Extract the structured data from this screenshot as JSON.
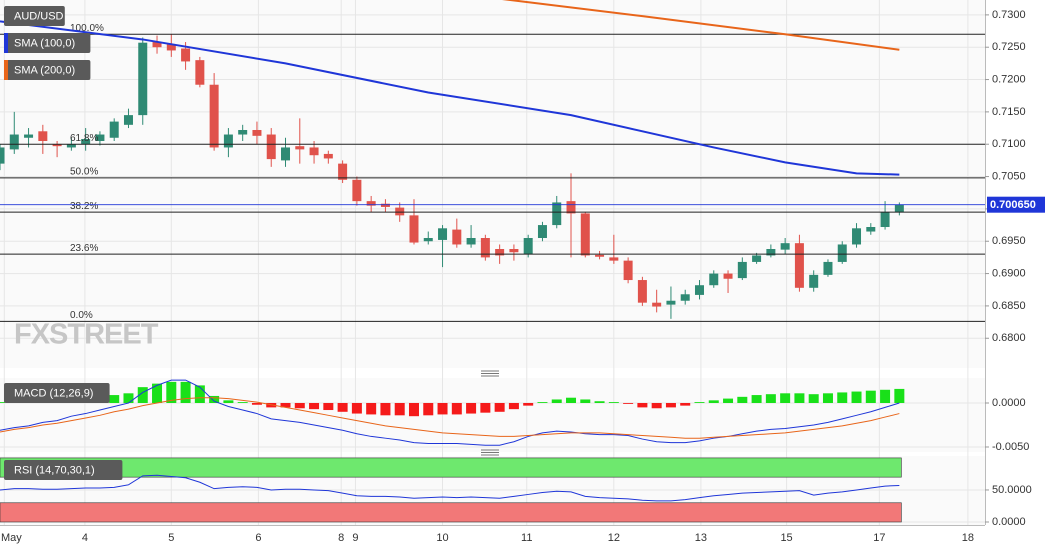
{
  "chart_data": [
    {
      "type": "candlestick",
      "title": "AUD/USD",
      "watermark": "FXSTREET",
      "up_color": "#2f8a74",
      "down_color": "#e0524b",
      "xlim": [
        0,
        69
      ],
      "xticks": [
        {
          "value": 0.3,
          "label": "May"
        },
        {
          "value": 5.95,
          "label": "4"
        },
        {
          "value": 12.0,
          "label": "5"
        },
        {
          "value": 18.1,
          "label": "6"
        },
        {
          "value": 23.9,
          "label": "8"
        },
        {
          "value": 24.9,
          "label": "9"
        },
        {
          "value": 31.0,
          "label": "10"
        },
        {
          "value": 36.9,
          "label": "11"
        },
        {
          "value": 43.0,
          "label": "12"
        },
        {
          "value": 49.1,
          "label": "13"
        },
        {
          "value": 55.1,
          "label": "15"
        },
        {
          "value": 61.6,
          "label": "17"
        },
        {
          "value": 67.8,
          "label": "18"
        }
      ],
      "ylim": [
        0.6754,
        0.7323
      ],
      "yticks": [
        {
          "value": 0.73,
          "label": "0.7300"
        },
        {
          "value": 0.725,
          "label": "0.7250"
        },
        {
          "value": 0.72,
          "label": "0.7200"
        },
        {
          "value": 0.715,
          "label": "0.7150"
        },
        {
          "value": 0.71,
          "label": "0.7100"
        },
        {
          "value": 0.705,
          "label": "0.7050"
        },
        {
          "value": 0.7,
          "label": "0.7000"
        },
        {
          "value": 0.695,
          "label": "0.6950"
        },
        {
          "value": 0.69,
          "label": "0.6900"
        },
        {
          "value": 0.685,
          "label": "0.6850"
        },
        {
          "value": 0.68,
          "label": "0.6800"
        }
      ],
      "grid": true,
      "x": [
        0,
        1,
        2,
        3,
        4,
        5,
        6,
        7,
        8,
        9,
        10,
        11,
        12,
        13,
        14,
        15,
        16,
        17,
        18,
        19,
        20,
        21,
        22,
        23,
        24,
        25,
        26,
        27,
        28,
        29,
        30,
        31,
        32,
        33,
        34,
        35,
        36,
        37,
        38,
        39,
        40,
        41,
        42,
        43,
        44,
        45,
        46,
        47,
        48,
        49,
        50,
        51,
        52,
        53,
        54,
        55,
        56,
        57,
        58,
        59,
        60,
        61,
        62,
        63
      ],
      "open": [
        0.707,
        0.7092,
        0.711,
        0.712,
        0.71,
        0.7095,
        0.71,
        0.7105,
        0.711,
        0.713,
        0.7145,
        0.7258,
        0.7255,
        0.7248,
        0.723,
        0.7192,
        0.7095,
        0.7115,
        0.7122,
        0.7115,
        0.7075,
        0.7097,
        0.7095,
        0.7085,
        0.707,
        0.7045,
        0.7012,
        0.7008,
        0.7002,
        0.699,
        0.695,
        0.6952,
        0.6968,
        0.6945,
        0.6955,
        0.6938,
        0.6938,
        0.693,
        0.6955,
        0.6975,
        0.7012,
        0.6993,
        0.6929,
        0.6925,
        0.692,
        0.689,
        0.6855,
        0.6852,
        0.6858,
        0.6867,
        0.6882,
        0.69,
        0.6893,
        0.6918,
        0.6928,
        0.6937,
        0.6947,
        0.6878,
        0.6898,
        0.6918,
        0.6945,
        0.6965,
        0.6972,
        0.6995
      ],
      "high": [
        0.71,
        0.715,
        0.7125,
        0.713,
        0.7105,
        0.711,
        0.7125,
        0.712,
        0.714,
        0.7155,
        0.7265,
        0.7268,
        0.727,
        0.7258,
        0.7235,
        0.721,
        0.7125,
        0.713,
        0.7135,
        0.7125,
        0.711,
        0.714,
        0.7105,
        0.709,
        0.7075,
        0.705,
        0.702,
        0.7015,
        0.701,
        0.7015,
        0.6965,
        0.6975,
        0.6985,
        0.6975,
        0.696,
        0.6945,
        0.6945,
        0.696,
        0.698,
        0.702,
        0.7055,
        0.6995,
        0.6935,
        0.696,
        0.6925,
        0.6895,
        0.6875,
        0.688,
        0.6875,
        0.689,
        0.6905,
        0.6905,
        0.6925,
        0.6932,
        0.6945,
        0.6955,
        0.696,
        0.6905,
        0.6922,
        0.695,
        0.6978,
        0.6978,
        0.7012,
        0.701
      ],
      "low": [
        0.706,
        0.7085,
        0.7095,
        0.7085,
        0.708,
        0.709,
        0.709,
        0.7098,
        0.7105,
        0.7125,
        0.713,
        0.724,
        0.7235,
        0.7215,
        0.7188,
        0.709,
        0.708,
        0.7105,
        0.71,
        0.7065,
        0.7065,
        0.707,
        0.707,
        0.707,
        0.704,
        0.7005,
        0.6995,
        0.6995,
        0.698,
        0.6945,
        0.6945,
        0.691,
        0.694,
        0.694,
        0.692,
        0.6915,
        0.692,
        0.6925,
        0.695,
        0.697,
        0.6925,
        0.6925,
        0.6922,
        0.6915,
        0.6885,
        0.685,
        0.684,
        0.683,
        0.6852,
        0.686,
        0.6878,
        0.687,
        0.689,
        0.6915,
        0.6925,
        0.693,
        0.6872,
        0.6872,
        0.6895,
        0.6915,
        0.694,
        0.696,
        0.6968,
        0.699
      ],
      "close": [
        0.7095,
        0.7115,
        0.7115,
        0.7105,
        0.7097,
        0.71,
        0.7108,
        0.7115,
        0.7135,
        0.7145,
        0.7257,
        0.725,
        0.7245,
        0.7228,
        0.7192,
        0.7095,
        0.7115,
        0.7122,
        0.7113,
        0.7077,
        0.7095,
        0.7092,
        0.7083,
        0.7078,
        0.7045,
        0.7012,
        0.7005,
        0.7003,
        0.699,
        0.6948,
        0.6955,
        0.697,
        0.6945,
        0.6955,
        0.6925,
        0.6928,
        0.6933,
        0.6955,
        0.6975,
        0.701,
        0.6993,
        0.6928,
        0.6926,
        0.692,
        0.689,
        0.6855,
        0.6849,
        0.6858,
        0.6868,
        0.6882,
        0.69,
        0.6892,
        0.6918,
        0.6928,
        0.6938,
        0.6947,
        0.6878,
        0.6898,
        0.6918,
        0.6945,
        0.697,
        0.6972,
        0.6995,
        0.7006
      ],
      "lines": [
        {
          "name": "SMA (100,0)",
          "color": "#1f36d8",
          "x": [
            0,
            10,
            20,
            30,
            40,
            50,
            55,
            60,
            63
          ],
          "values": [
            0.729,
            0.7262,
            0.7225,
            0.718,
            0.7145,
            0.7095,
            0.7072,
            0.7055,
            0.7053
          ]
        },
        {
          "name": "SMA (200,0)",
          "color": "#e8651a",
          "x": [
            35,
            45,
            55,
            63
          ],
          "values": [
            0.7325,
            0.7298,
            0.727,
            0.7246
          ]
        }
      ],
      "fib_levels": [
        {
          "label": "100.0%",
          "value": 0.727
        },
        {
          "label": "61.8%",
          "value": 0.71
        },
        {
          "label": "50.0%",
          "value": 0.7048
        },
        {
          "label": "38.2%",
          "value": 0.6995
        },
        {
          "label": "23.6%",
          "value": 0.693
        },
        {
          "label": "0.0%",
          "value": 0.6826
        }
      ],
      "last_price": {
        "value": 0.70065,
        "label": "0.700650",
        "color": "#1f36d8"
      }
    },
    {
      "type": "macd",
      "title": "MACD (12,26,9)",
      "ylim": [
        -0.00557,
        0.00284
      ],
      "yticks": [
        {
          "value": 0,
          "label": "0.0000"
        },
        {
          "value": -0.005,
          "label": "-0.0050"
        }
      ],
      "up_color": "#19e019",
      "down_color": "#f51a1a",
      "histogram": [
        0.0001,
        0.0001,
        0.0002,
        0.0002,
        0.0003,
        0.0004,
        0.0006,
        0.0008,
        0.0009,
        0.0011,
        0.0018,
        0.0022,
        0.0024,
        0.0024,
        0.002,
        0.0008,
        0.0003,
        0.0001,
        -0.0002,
        -0.0005,
        -0.0005,
        -0.0006,
        -0.0007,
        -0.0008,
        -0.001,
        -0.0012,
        -0.0013,
        -0.0014,
        -0.0014,
        -0.0015,
        -0.0014,
        -0.0013,
        -0.0013,
        -0.0012,
        -0.0011,
        -0.001,
        -0.0007,
        -0.0003,
        0.0001,
        0.0004,
        0.0006,
        0.0004,
        0.0002,
        0.0001,
        -0.0001,
        -0.0005,
        -0.0006,
        -0.0005,
        -0.0003,
        0.0001,
        0.0003,
        0.0005,
        0.0007,
        0.0009,
        0.001,
        0.0011,
        0.0011,
        0.001,
        0.0011,
        0.0012,
        0.0013,
        0.0014,
        0.0015,
        0.0016
      ],
      "macd_line": {
        "color": "#1f36d8",
        "values": [
          -0.0031,
          -0.0028,
          -0.0026,
          -0.0022,
          -0.002,
          -0.0015,
          -0.0012,
          -0.0008,
          -0.0004,
          0.0,
          0.0012,
          0.002,
          0.0026,
          0.0026,
          0.0018,
          0.0002,
          -0.0004,
          -0.0008,
          -0.0012,
          -0.0018,
          -0.002,
          -0.0022,
          -0.0025,
          -0.0028,
          -0.0031,
          -0.0035,
          -0.0038,
          -0.004,
          -0.0042,
          -0.0045,
          -0.0046,
          -0.0046,
          -0.0046,
          -0.0047,
          -0.0048,
          -0.0048,
          -0.0044,
          -0.0038,
          -0.0034,
          -0.0032,
          -0.0033,
          -0.0035,
          -0.0036,
          -0.0036,
          -0.0037,
          -0.0041,
          -0.0044,
          -0.0045,
          -0.0045,
          -0.0043,
          -0.004,
          -0.0038,
          -0.0035,
          -0.0032,
          -0.003,
          -0.0029,
          -0.0027,
          -0.0025,
          -0.0022,
          -0.0018,
          -0.0014,
          -0.001,
          -0.0005,
          0.0
        ]
      },
      "signal_line": {
        "color": "#e8651a",
        "values": [
          -0.0033,
          -0.003,
          -0.0028,
          -0.0025,
          -0.0023,
          -0.002,
          -0.0017,
          -0.0014,
          -0.001,
          -0.0007,
          -0.0003,
          0.0,
          0.0003,
          0.0005,
          0.0006,
          0.0006,
          0.0005,
          0.0003,
          0.0001,
          -0.0002,
          -0.0005,
          -0.0008,
          -0.0011,
          -0.0014,
          -0.0017,
          -0.002,
          -0.0023,
          -0.0026,
          -0.0028,
          -0.003,
          -0.0032,
          -0.0034,
          -0.0035,
          -0.0036,
          -0.0037,
          -0.0038,
          -0.0038,
          -0.0037,
          -0.0036,
          -0.0035,
          -0.0034,
          -0.0034,
          -0.0034,
          -0.0035,
          -0.0036,
          -0.0037,
          -0.0038,
          -0.0039,
          -0.004,
          -0.004,
          -0.0039,
          -0.0038,
          -0.0037,
          -0.0036,
          -0.0035,
          -0.0034,
          -0.0032,
          -0.003,
          -0.0028,
          -0.0026,
          -0.0023,
          -0.002,
          -0.0016,
          -0.0012
        ]
      }
    },
    {
      "type": "rsi",
      "title": "RSI (14,70,30,1)",
      "ylim": [
        -4.7,
        103
      ],
      "yticks": [
        {
          "value": 50,
          "label": "50.0000"
        },
        {
          "value": 0,
          "label": "0.0000"
        }
      ],
      "color": "#1f36d8",
      "bands": [
        {
          "from": 70,
          "to": 100,
          "color": "#6ee86e"
        },
        {
          "from": 0,
          "to": 30,
          "color": "#f27878"
        }
      ],
      "values": [
        50,
        52,
        52,
        51,
        51,
        52,
        53,
        53,
        54,
        58,
        72,
        73,
        71,
        69,
        62,
        52,
        54,
        55,
        54,
        50,
        51,
        51,
        50,
        49,
        45,
        41,
        40,
        40,
        39,
        37,
        38,
        39,
        38,
        39,
        38,
        37,
        40,
        43,
        46,
        48,
        47,
        40,
        38,
        37,
        36,
        34,
        33,
        33,
        35,
        38,
        41,
        43,
        45,
        46,
        47,
        48,
        49,
        42,
        45,
        47,
        50,
        53,
        56,
        57
      ]
    }
  ]
}
